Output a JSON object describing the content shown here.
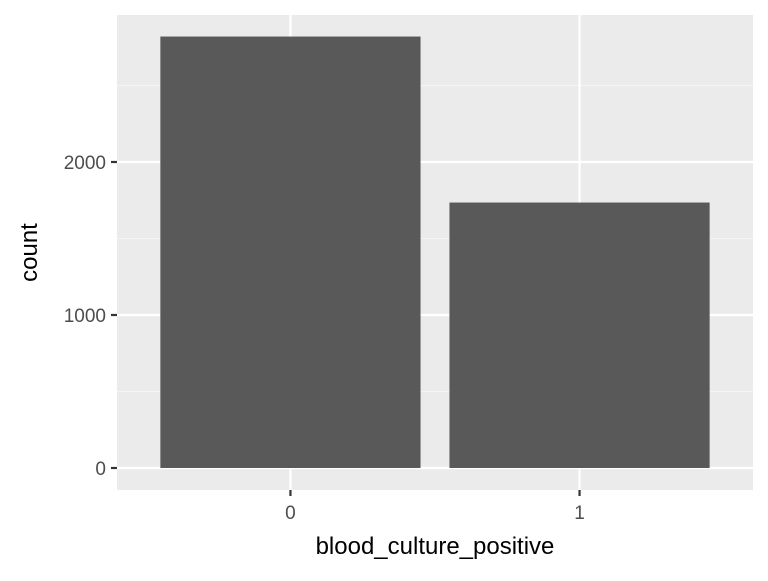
{
  "chart_data": {
    "type": "bar",
    "categories": [
      "0",
      "1"
    ],
    "values": [
      2820,
      1735
    ],
    "title": "",
    "xlabel": "blood_culture_positive",
    "ylabel": "count",
    "ylim": [
      0,
      2960
    ],
    "yticks": [
      0,
      1000,
      2000
    ],
    "yticks_labels": [
      "0",
      "1000",
      "2000"
    ],
    "grid": true,
    "colors": {
      "panel_background": "#ebebeb",
      "grid_major": "#ffffff",
      "grid_minor": "#f5f5f5",
      "bar_fill": "#595959",
      "tick_mark": "#333333"
    }
  }
}
